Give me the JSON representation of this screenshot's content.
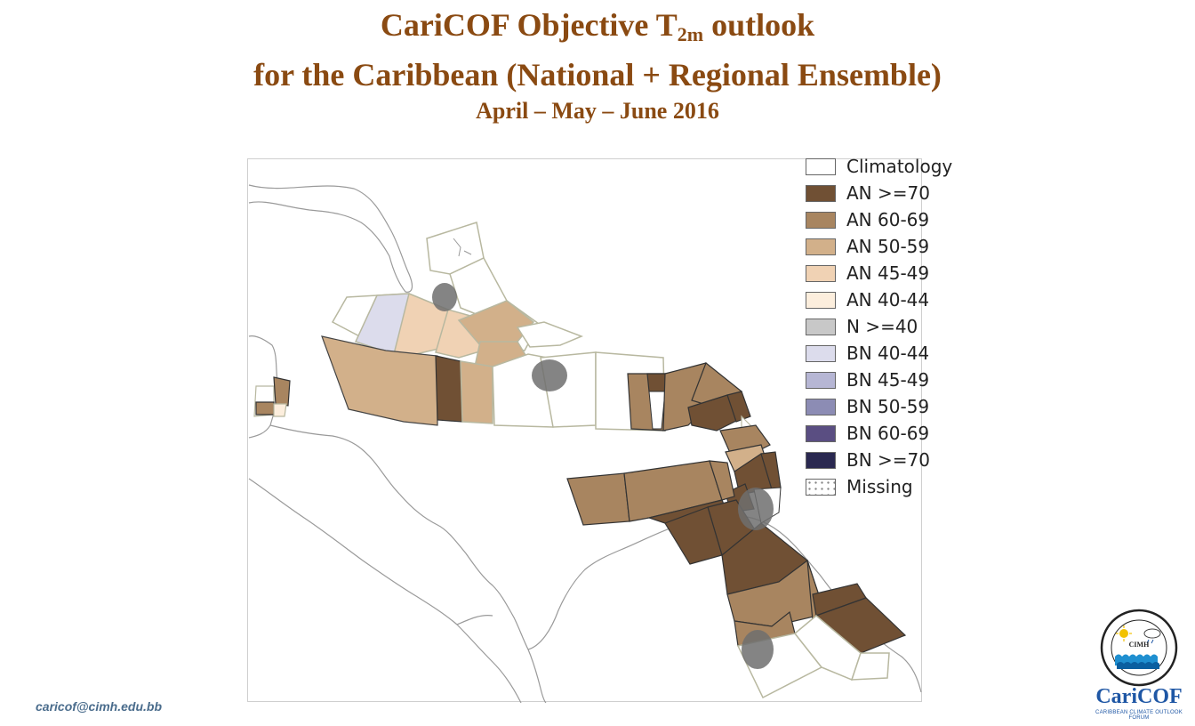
{
  "title": {
    "line1_prefix": "CariCOF Objective T",
    "line1_sub": "2m",
    "line1_suffix": " outlook",
    "line2": "for the Caribbean (National + Regional Ensemble)",
    "line3": "April – May – June 2016"
  },
  "legend": {
    "items": [
      {
        "label": "Climatology",
        "color": "#ffffff"
      },
      {
        "label": "AN >=70",
        "color": "#705034"
      },
      {
        "label": "AN 60-69",
        "color": "#a88560"
      },
      {
        "label": "AN 50-59",
        "color": "#d2b08a"
      },
      {
        "label": "AN 45-49",
        "color": "#f0d2b4"
      },
      {
        "label": "AN 40-44",
        "color": "#fceedd"
      },
      {
        "label": "N >=40",
        "color": "#c8c8c8"
      },
      {
        "label": "BN 40-44",
        "color": "#dcdcec"
      },
      {
        "label": "BN 45-49",
        "color": "#b6b6d4"
      },
      {
        "label": "BN 50-59",
        "color": "#8c8cb4"
      },
      {
        "label": "BN 60-69",
        "color": "#5a4e82"
      },
      {
        "label": "BN  >=70",
        "color": "#2a2850"
      },
      {
        "label": "Missing",
        "color": "pattern-dots"
      }
    ]
  },
  "footer": {
    "email": "caricof@cimh.edu.bb"
  },
  "logo": {
    "org_short": "CIMH",
    "brand": "CariCOF",
    "brand_subtitle": "CARIBBEAN CLIMATE OUTLOOK FORUM",
    "icons": [
      "sun-icon",
      "cloud-icon",
      "waves-icon"
    ]
  }
}
